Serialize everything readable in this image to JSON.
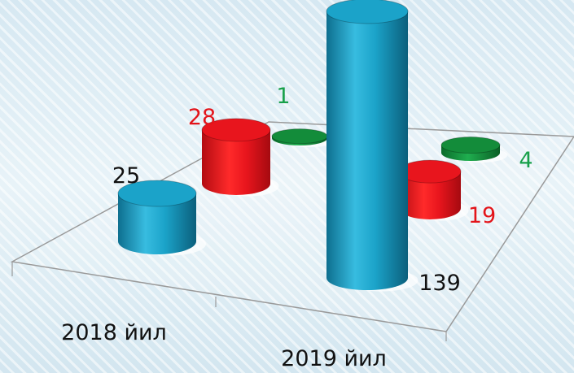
{
  "chart_data": {
    "type": "bar",
    "categories": [
      "2018 йил",
      "2019 йил"
    ],
    "series": [
      {
        "values": [
          25,
          139
        ],
        "color": "#1ba3c9",
        "label_color": "#111111"
      },
      {
        "values": [
          28,
          19
        ],
        "color": "#e8151d",
        "label_color": "#e3141a"
      },
      {
        "values": [
          1,
          4
        ],
        "color": "#138c3a",
        "label_color": "#18a04a"
      }
    ],
    "ylim": [
      0,
      145
    ],
    "grid": false,
    "legend": "none"
  }
}
